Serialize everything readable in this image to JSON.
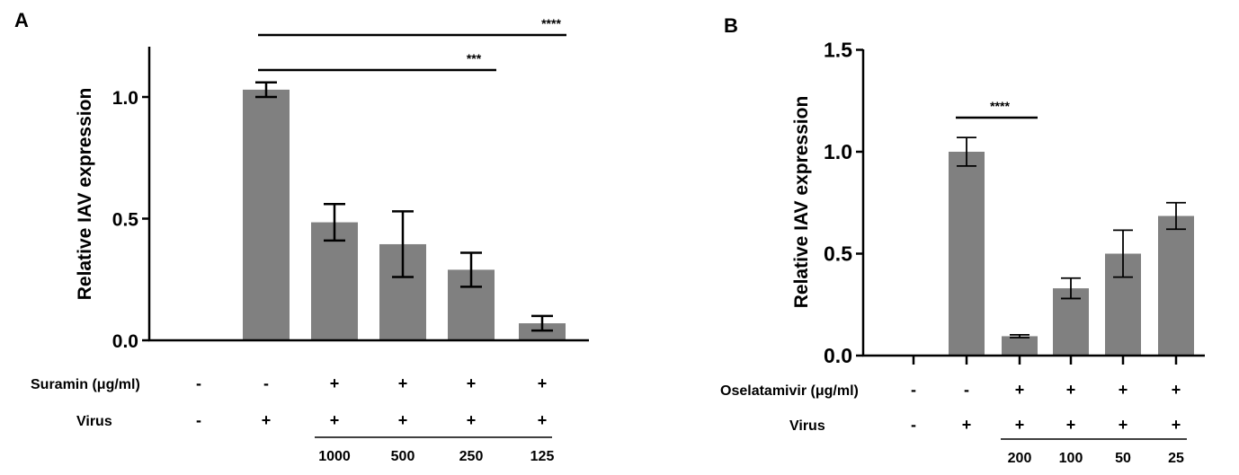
{
  "chart_data": [
    {
      "panel": "A",
      "type": "bar",
      "ylabel": "Relative IAV expression",
      "ylim": [
        0,
        1.2
      ],
      "yticks": [
        0.0,
        0.5,
        1.0
      ],
      "ytick_labels": [
        "0.0",
        "0.5",
        "1.0"
      ],
      "values": [
        0,
        1.03,
        0.485,
        0.395,
        0.29,
        0.07
      ],
      "errors": [
        0,
        0.03,
        0.075,
        0.135,
        0.07,
        0.03
      ],
      "bar_color": "#808080",
      "treatment_rows": [
        {
          "label": "Suramin (μg/ml)",
          "marks": [
            "-",
            "-",
            "+",
            "+",
            "+",
            "+"
          ]
        },
        {
          "label": "Virus",
          "marks": [
            "-",
            "+",
            "+",
            "+",
            "+",
            "+"
          ]
        }
      ],
      "concentrations": [
        "1000",
        "500",
        "250",
        "125"
      ],
      "significance": [
        {
          "from": 1,
          "to": 5,
          "label": "****"
        },
        {
          "from": 1,
          "to": 4,
          "label": "***"
        }
      ]
    },
    {
      "panel": "B",
      "type": "bar",
      "ylabel": "Relative IAV expression",
      "ylim": [
        0,
        1.5
      ],
      "yticks": [
        0.0,
        0.5,
        1.0,
        1.5
      ],
      "ytick_labels": [
        "0.0",
        "0.5",
        "1.0",
        "1.5"
      ],
      "values": [
        0,
        1.0,
        0.095,
        0.33,
        0.5,
        0.685
      ],
      "errors": [
        0,
        0.07,
        0.007,
        0.05,
        0.115,
        0.065
      ],
      "bar_color": "#808080",
      "treatment_rows": [
        {
          "label": "Oselatamivir (μg/ml)",
          "marks": [
            "-",
            "-",
            "+",
            "+",
            "+",
            "+"
          ]
        },
        {
          "label": "Virus",
          "marks": [
            "-",
            "+",
            "+",
            "+",
            "+",
            "+"
          ]
        }
      ],
      "concentrations": [
        "200",
        "100",
        "50",
        "25"
      ],
      "significance": [
        {
          "from": 1,
          "to": 2,
          "label": "****"
        }
      ]
    }
  ]
}
